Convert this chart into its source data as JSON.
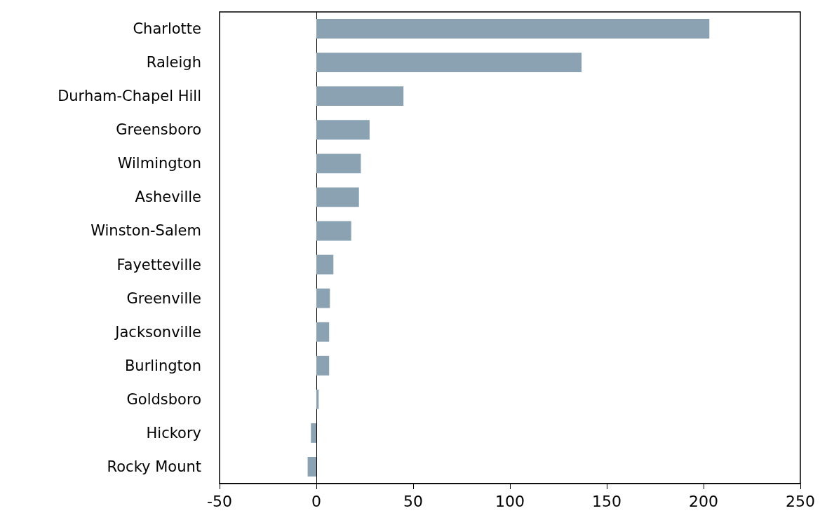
{
  "chart_data": {
    "type": "bar",
    "orientation": "horizontal",
    "categories": [
      "Charlotte",
      "Raleigh",
      "Durham-Chapel Hill",
      "Greensboro",
      "Wilmington",
      "Asheville",
      "Winston-Salem",
      "Fayetteville",
      "Greenville",
      "Jacksonville",
      "Burlington",
      "Goldsboro",
      "Hickory",
      "Rocky Mount"
    ],
    "values": [
      203,
      137,
      45,
      27.5,
      23,
      22,
      18,
      8.8,
      7,
      6.6,
      6.6,
      1.2,
      -2.8,
      -4.5
    ],
    "color": "#8aa2b2",
    "xlim": [
      -50,
      250
    ],
    "xticks": [
      -50,
      0,
      50,
      100,
      150,
      200,
      250
    ]
  }
}
